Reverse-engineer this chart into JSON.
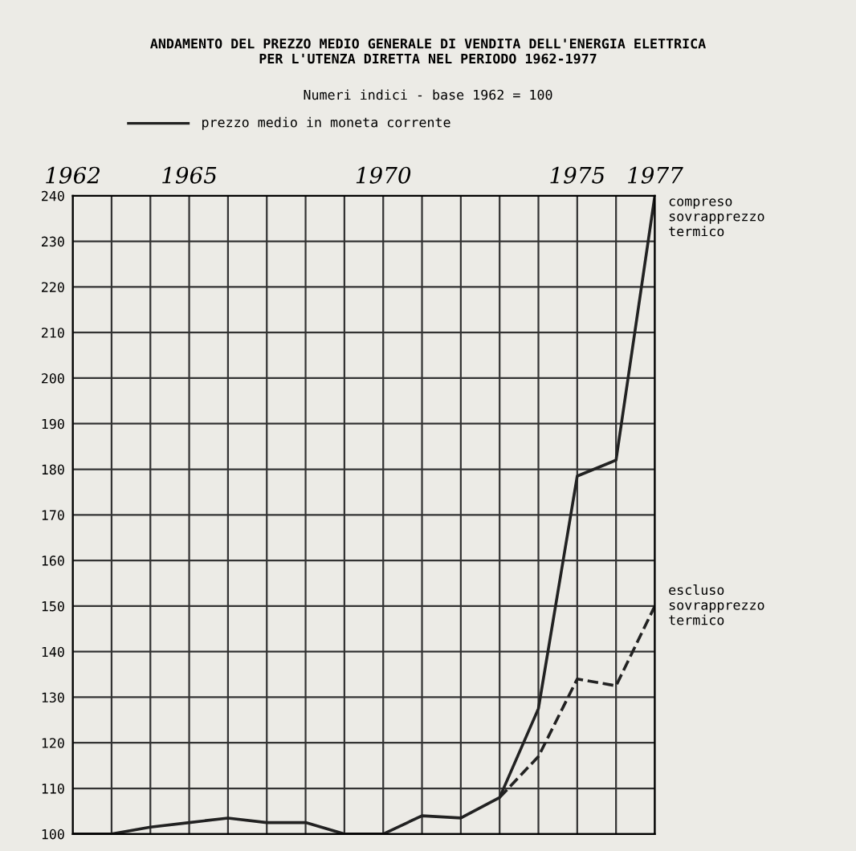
{
  "chart_data": {
    "type": "line",
    "title": "ANDAMENTO DEL PREZZO MEDIO GENERALE DI VENDITA DELL'ENERGIA ELETTRICA\nPER L'UTENZA DIRETTA NEL PERIODO 1962-1977",
    "subtitle": "Numeri indici - base 1962 = 100",
    "annotations": [
      "prezzo medio in moneta corrente"
    ],
    "x": [
      1962,
      1963,
      1964,
      1965,
      1966,
      1967,
      1968,
      1969,
      1970,
      1971,
      1972,
      1973,
      1974,
      1975,
      1976,
      1977
    ],
    "series": [
      {
        "name": "compreso sovrapprezzo termico",
        "color": "#222222",
        "line_style": "solid",
        "values": [
          100,
          100,
          101.5,
          102.5,
          103.5,
          102.5,
          102.5,
          100,
          100,
          104,
          103.5,
          108,
          127.5,
          178.5,
          182,
          240
        ]
      },
      {
        "name": "escluso sovrapprezzo termico",
        "color": "#222222",
        "line_style": "dashed",
        "values": [
          null,
          null,
          null,
          null,
          null,
          null,
          null,
          null,
          null,
          null,
          null,
          108,
          117,
          134,
          132.5,
          150
        ]
      }
    ],
    "xlim": [
      1962,
      1977
    ],
    "xticks": [
      1962,
      {
        "value": 1963,
        "label": null
      },
      {
        "value": 1964,
        "label": null
      },
      1965,
      {
        "value": 1966,
        "label": null
      },
      {
        "value": 1967,
        "label": null
      },
      {
        "value": 1968,
        "label": null
      },
      {
        "value": 1969,
        "label": null
      },
      1970,
      {
        "value": 1971,
        "label": null
      },
      {
        "value": 1972,
        "label": null
      },
      {
        "value": 1973,
        "label": null
      },
      {
        "value": 1974,
        "label": null
      },
      1975,
      {
        "value": 1976,
        "label": null
      },
      1977
    ],
    "ylim": [
      100,
      240
    ],
    "yticks": [
      100,
      110,
      120,
      130,
      140,
      150,
      160,
      170,
      180,
      190,
      200,
      210,
      220,
      230,
      240
    ],
    "grid": true,
    "marker": "none"
  }
}
